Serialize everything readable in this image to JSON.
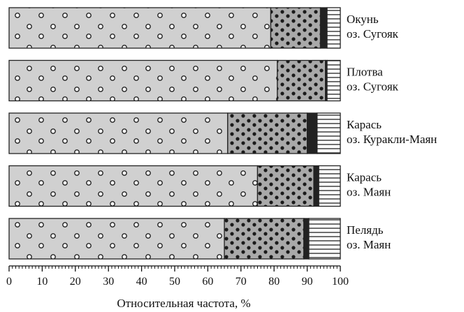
{
  "chart_data": {
    "type": "bar",
    "orientation": "horizontal",
    "stacked": true,
    "categories": [
      [
        "Окунь",
        "оз. Сугояк"
      ],
      [
        "Плотва",
        "оз. Сугояк"
      ],
      [
        "Карась",
        "оз. Куракли-Маян"
      ],
      [
        "Карась",
        "оз. Маян"
      ],
      [
        "Пелядь",
        "оз. Маян"
      ]
    ],
    "series": [
      {
        "fill": "#d0d0d0",
        "pattern": "open-circles",
        "values": [
          79,
          81,
          66,
          75,
          65
        ]
      },
      {
        "fill": "#a9a9a9",
        "pattern": "dark-dots",
        "values": [
          15,
          14.5,
          24,
          17,
          24
        ]
      },
      {
        "fill": "#222222",
        "pattern": "solid",
        "values": [
          2,
          0.5,
          3,
          1.5,
          1.5
        ]
      },
      {
        "fill": "#ffffff",
        "pattern": "horizontal-lines",
        "values": [
          4,
          4,
          7,
          6.5,
          9.5
        ]
      }
    ],
    "xlabel": "Относительная частота, %",
    "xlim": [
      0,
      100
    ],
    "xticks": [
      0,
      10,
      20,
      30,
      40,
      50,
      60,
      70,
      80,
      90,
      100
    ],
    "minor_ticks_per_major": 10
  }
}
